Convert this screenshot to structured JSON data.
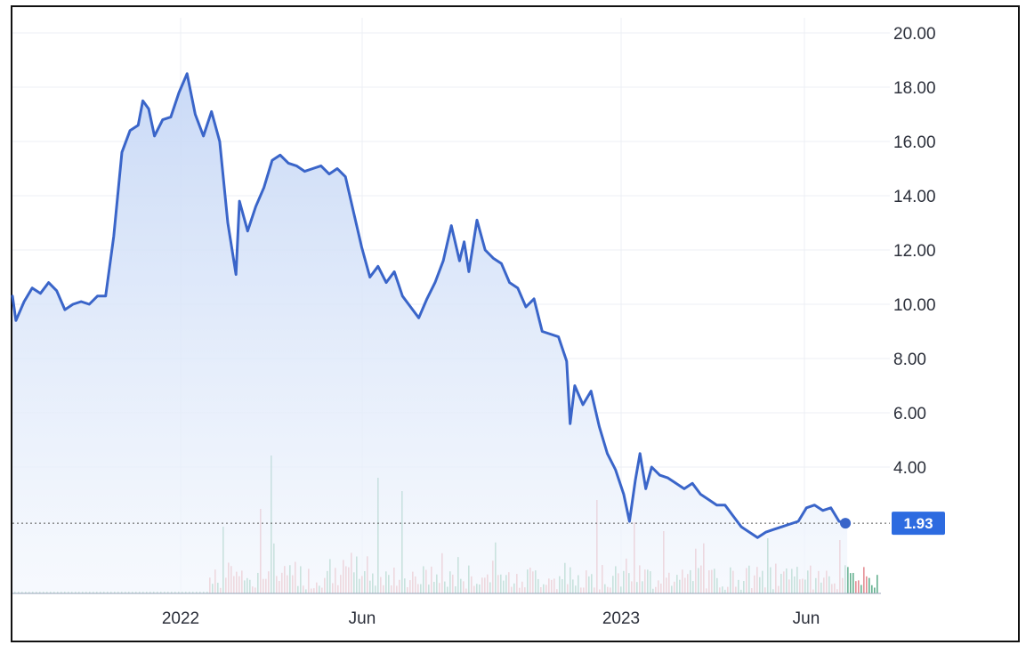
{
  "chart_data": {
    "type": "line",
    "title": "",
    "xlabel": "",
    "ylabel": "",
    "y_ticks": [
      "20.00",
      "18.00",
      "16.00",
      "14.00",
      "12.00",
      "10.00",
      "8.00",
      "6.00",
      "4.00"
    ],
    "x_ticks": [
      "2022",
      "Jun",
      "2023",
      "Jun"
    ],
    "ylim": [
      0,
      21
    ],
    "xlim": [
      "2021-08-20",
      "2023-09-05"
    ],
    "grid": true,
    "axis_position": "right",
    "last_value": 1.93,
    "last_value_label": "1.93",
    "colors": {
      "line": "#3a65c9",
      "fill_top": "#c7d8f6",
      "fill_bottom": "#f3f7fd",
      "volume_up": "#4aa37c",
      "volume_down": "#e07a82",
      "label_bg": "#2d6be0"
    },
    "series": [
      {
        "points": [
          [
            "2021-08-20",
            10.3
          ],
          [
            "2021-08-23",
            9.4
          ],
          [
            "2021-08-30",
            10.1
          ],
          [
            "2021-09-06",
            10.6
          ],
          [
            "2021-09-13",
            10.4
          ],
          [
            "2021-09-20",
            10.8
          ],
          [
            "2021-09-27",
            10.5
          ],
          [
            "2021-10-04",
            9.8
          ],
          [
            "2021-10-11",
            10.0
          ],
          [
            "2021-10-18",
            10.1
          ],
          [
            "2021-10-25",
            10.0
          ],
          [
            "2021-11-01",
            10.3
          ],
          [
            "2021-11-08",
            10.3
          ],
          [
            "2021-11-15",
            12.5
          ],
          [
            "2021-11-22",
            15.6
          ],
          [
            "2021-11-29",
            16.4
          ],
          [
            "2021-12-06",
            16.6
          ],
          [
            "2021-12-10",
            17.5
          ],
          [
            "2021-12-15",
            17.2
          ],
          [
            "2021-12-20",
            16.2
          ],
          [
            "2021-12-27",
            16.8
          ],
          [
            "2022-01-03",
            16.9
          ],
          [
            "2022-01-10",
            17.8
          ],
          [
            "2022-01-17",
            18.5
          ],
          [
            "2022-01-24",
            17.0
          ],
          [
            "2022-01-31",
            16.2
          ],
          [
            "2022-02-07",
            17.1
          ],
          [
            "2022-02-14",
            16.0
          ],
          [
            "2022-02-21",
            13.0
          ],
          [
            "2022-02-28",
            11.1
          ],
          [
            "2022-03-03",
            13.8
          ],
          [
            "2022-03-10",
            12.7
          ],
          [
            "2022-03-17",
            13.6
          ],
          [
            "2022-03-24",
            14.3
          ],
          [
            "2022-03-31",
            15.3
          ],
          [
            "2022-04-07",
            15.5
          ],
          [
            "2022-04-14",
            15.2
          ],
          [
            "2022-04-21",
            15.1
          ],
          [
            "2022-04-28",
            14.9
          ],
          [
            "2022-05-05",
            15.0
          ],
          [
            "2022-05-12",
            15.1
          ],
          [
            "2022-05-19",
            14.8
          ],
          [
            "2022-05-26",
            15.0
          ],
          [
            "2022-06-02",
            14.7
          ],
          [
            "2022-06-09",
            13.4
          ],
          [
            "2022-06-16",
            12.1
          ],
          [
            "2022-06-23",
            11.0
          ],
          [
            "2022-06-30",
            11.4
          ],
          [
            "2022-07-07",
            10.8
          ],
          [
            "2022-07-14",
            11.2
          ],
          [
            "2022-07-21",
            10.3
          ],
          [
            "2022-07-28",
            9.9
          ],
          [
            "2022-08-04",
            9.5
          ],
          [
            "2022-08-11",
            10.2
          ],
          [
            "2022-08-18",
            10.8
          ],
          [
            "2022-08-25",
            11.6
          ],
          [
            "2022-09-01",
            12.9
          ],
          [
            "2022-09-08",
            11.6
          ],
          [
            "2022-09-12",
            12.3
          ],
          [
            "2022-09-16",
            11.2
          ],
          [
            "2022-09-23",
            13.1
          ],
          [
            "2022-09-30",
            12.0
          ],
          [
            "2022-10-07",
            11.7
          ],
          [
            "2022-10-14",
            11.5
          ],
          [
            "2022-10-21",
            10.8
          ],
          [
            "2022-10-28",
            10.6
          ],
          [
            "2022-11-04",
            9.9
          ],
          [
            "2022-11-11",
            10.2
          ],
          [
            "2022-11-18",
            9.0
          ],
          [
            "2022-11-25",
            8.9
          ],
          [
            "2022-12-02",
            8.8
          ],
          [
            "2022-12-09",
            7.9
          ],
          [
            "2022-12-12",
            5.6
          ],
          [
            "2022-12-16",
            7.0
          ],
          [
            "2022-12-23",
            6.3
          ],
          [
            "2022-12-30",
            6.8
          ],
          [
            "2023-01-06",
            5.5
          ],
          [
            "2023-01-13",
            4.5
          ],
          [
            "2023-01-20",
            3.9
          ],
          [
            "2023-01-27",
            3.0
          ],
          [
            "2023-02-01",
            2.0
          ],
          [
            "2023-02-06",
            3.5
          ],
          [
            "2023-02-10",
            4.5
          ],
          [
            "2023-02-15",
            3.2
          ],
          [
            "2023-02-20",
            4.0
          ],
          [
            "2023-02-27",
            3.7
          ],
          [
            "2023-03-06",
            3.6
          ],
          [
            "2023-03-13",
            3.4
          ],
          [
            "2023-03-20",
            3.2
          ],
          [
            "2023-03-27",
            3.4
          ],
          [
            "2023-04-03",
            3.0
          ],
          [
            "2023-04-10",
            2.8
          ],
          [
            "2023-04-17",
            2.6
          ],
          [
            "2023-04-24",
            2.6
          ],
          [
            "2023-05-01",
            2.2
          ],
          [
            "2023-05-08",
            1.8
          ],
          [
            "2023-05-15",
            1.6
          ],
          [
            "2023-05-22",
            1.4
          ],
          [
            "2023-05-29",
            1.6
          ],
          [
            "2023-06-05",
            1.7
          ],
          [
            "2023-06-12",
            1.8
          ],
          [
            "2023-06-19",
            1.9
          ],
          [
            "2023-06-26",
            2.0
          ],
          [
            "2023-07-03",
            2.5
          ],
          [
            "2023-07-10",
            2.6
          ],
          [
            "2023-07-17",
            2.4
          ],
          [
            "2023-07-24",
            2.5
          ],
          [
            "2023-07-31",
            2.0
          ],
          [
            "2023-08-07",
            1.93
          ]
        ]
      }
    ]
  }
}
